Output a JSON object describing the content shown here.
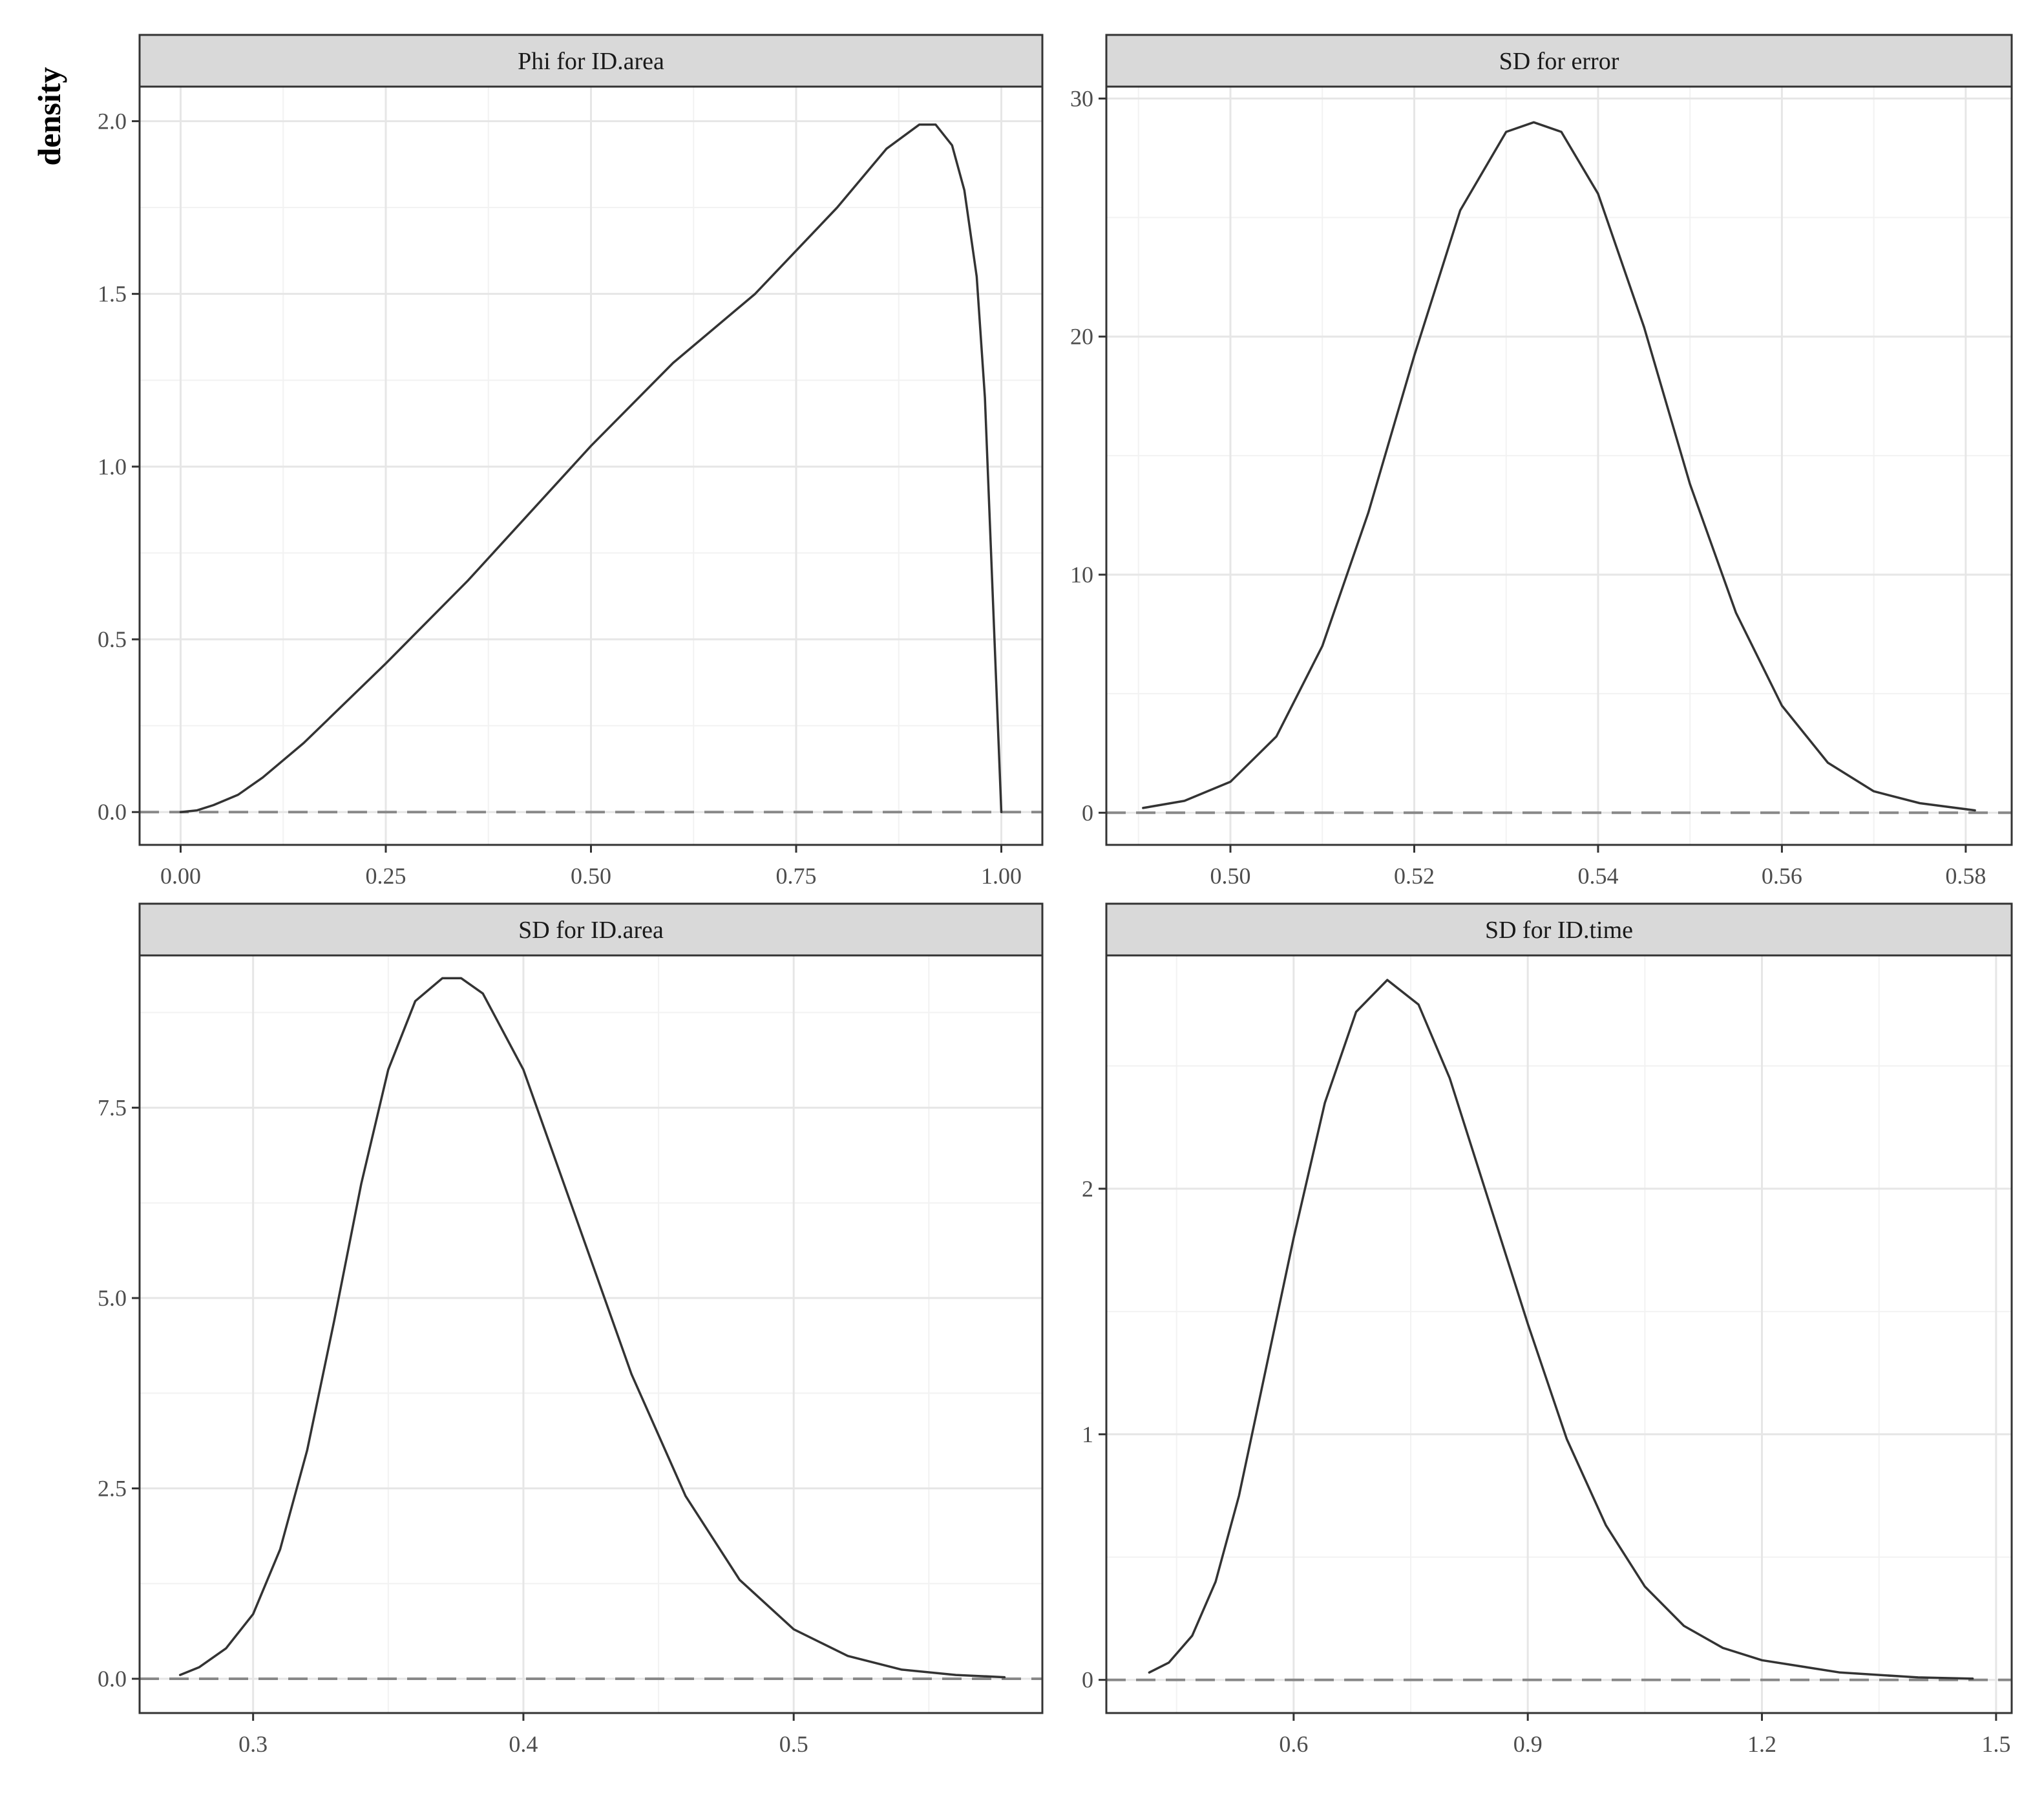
{
  "figure": {
    "ylabel": "density"
  },
  "chart_data": [
    {
      "type": "line",
      "title": "Phi for ID.area",
      "xlim": [
        -0.05,
        1.05
      ],
      "ylim": [
        -0.095,
        2.1
      ],
      "xticks": [
        0,
        0.25,
        0.5,
        0.75,
        1
      ],
      "xtick_labels": [
        "0.00",
        "0.25",
        "0.50",
        "0.75",
        "1.00"
      ],
      "yticks": [
        0,
        0.5,
        1,
        1.5,
        2
      ],
      "ytick_labels": [
        "0.0",
        "0.5",
        "1.0",
        "1.5",
        "2.0"
      ],
      "grid": true,
      "reference_line": {
        "y": 0,
        "style": "dashed"
      },
      "series": [
        {
          "x": [
            0.0,
            0.02,
            0.04,
            0.07,
            0.1,
            0.15,
            0.25,
            0.35,
            0.5,
            0.6,
            0.7,
            0.8,
            0.86,
            0.9,
            0.92,
            0.94,
            0.955,
            0.97,
            0.98,
            0.99,
            1.0
          ],
          "y": [
            0.0,
            0.005,
            0.02,
            0.05,
            0.1,
            0.2,
            0.43,
            0.67,
            1.06,
            1.3,
            1.5,
            1.75,
            1.92,
            1.99,
            1.99,
            1.93,
            1.8,
            1.55,
            1.2,
            0.6,
            0.0
          ]
        }
      ]
    },
    {
      "type": "line",
      "title": "SD for error",
      "xlim": [
        0.4865,
        0.585
      ],
      "ylim": [
        -1.35,
        30.5
      ],
      "xticks": [
        0.5,
        0.52,
        0.54,
        0.56,
        0.58
      ],
      "xtick_labels": [
        "0.50",
        "0.52",
        "0.54",
        "0.56",
        "0.58"
      ],
      "yticks": [
        0,
        10,
        20,
        30
      ],
      "ytick_labels": [
        "0",
        "10",
        "20",
        "30"
      ],
      "grid": true,
      "reference_line": {
        "y": 0,
        "style": "dashed"
      },
      "series": [
        {
          "x": [
            0.4905,
            0.495,
            0.5,
            0.505,
            0.51,
            0.515,
            0.52,
            0.525,
            0.53,
            0.533,
            0.536,
            0.54,
            0.545,
            0.55,
            0.555,
            0.56,
            0.565,
            0.57,
            0.575,
            0.581
          ],
          "y": [
            0.2,
            0.5,
            1.3,
            3.2,
            7.0,
            12.6,
            19.2,
            25.3,
            28.6,
            29.0,
            28.6,
            26.0,
            20.4,
            13.8,
            8.4,
            4.5,
            2.1,
            0.9,
            0.4,
            0.1
          ]
        }
      ]
    },
    {
      "type": "line",
      "title": "SD for ID.area",
      "xlim": [
        0.258,
        0.592
      ],
      "ylim": [
        -0.45,
        9.5
      ],
      "xticks": [
        0.3,
        0.4,
        0.5
      ],
      "xtick_labels": [
        "0.3",
        "0.4",
        "0.5"
      ],
      "yticks": [
        0,
        2.5,
        5,
        7.5
      ],
      "ytick_labels": [
        "0.0",
        "2.5",
        "5.0",
        "7.5"
      ],
      "grid": true,
      "reference_line": {
        "y": 0,
        "style": "dashed"
      },
      "series": [
        {
          "x": [
            0.273,
            0.28,
            0.29,
            0.3,
            0.31,
            0.32,
            0.33,
            0.34,
            0.35,
            0.36,
            0.37,
            0.377,
            0.385,
            0.4,
            0.42,
            0.44,
            0.46,
            0.48,
            0.5,
            0.52,
            0.54,
            0.56,
            0.578
          ],
          "y": [
            0.05,
            0.15,
            0.4,
            0.85,
            1.7,
            3.0,
            4.7,
            6.5,
            8.0,
            8.9,
            9.2,
            9.2,
            9.0,
            8.0,
            6.0,
            4.0,
            2.4,
            1.3,
            0.65,
            0.3,
            0.12,
            0.05,
            0.02
          ]
        }
      ]
    },
    {
      "type": "line",
      "title": "SD for ID.time",
      "xlim": [
        0.36,
        1.52
      ],
      "ylim": [
        -0.135,
        2.95
      ],
      "xticks": [
        0.6,
        0.9,
        1.2,
        1.5
      ],
      "xtick_labels": [
        "0.6",
        "0.9",
        "1.2",
        "1.5"
      ],
      "yticks": [
        0,
        1,
        2
      ],
      "ytick_labels": [
        "0",
        "1",
        "2"
      ],
      "grid": true,
      "reference_line": {
        "y": 0,
        "style": "dashed"
      },
      "series": [
        {
          "x": [
            0.415,
            0.44,
            0.47,
            0.5,
            0.53,
            0.56,
            0.6,
            0.64,
            0.68,
            0.72,
            0.76,
            0.8,
            0.85,
            0.9,
            0.95,
            1.0,
            1.05,
            1.1,
            1.15,
            1.2,
            1.3,
            1.4,
            1.47
          ],
          "y": [
            0.03,
            0.07,
            0.18,
            0.4,
            0.75,
            1.2,
            1.8,
            2.35,
            2.72,
            2.85,
            2.75,
            2.45,
            1.95,
            1.45,
            0.98,
            0.63,
            0.38,
            0.22,
            0.13,
            0.08,
            0.03,
            0.01,
            0.005
          ]
        }
      ]
    }
  ]
}
